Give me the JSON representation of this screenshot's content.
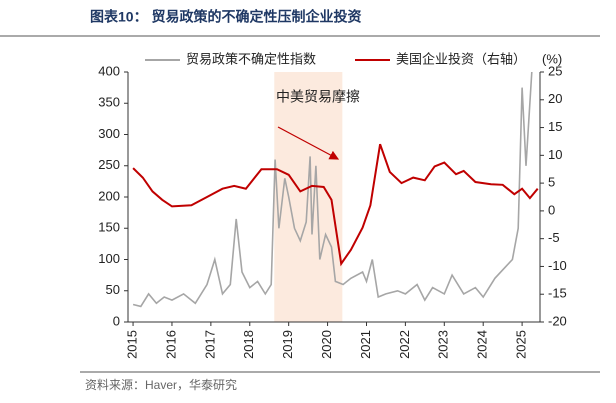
{
  "chart_data": {
    "type": "line",
    "title": "图表10： 贸易政策的不确定性压制企业投资",
    "source": "资料来源：Haver，华泰研究",
    "annotation": "中美贸易摩擦",
    "y2label": "(%)",
    "shaded_range": [
      2018.63,
      2020.38
    ],
    "xlim": [
      2014.87,
      2025.46
    ],
    "xticks": [
      2015,
      2016,
      2017,
      2018,
      2019,
      2020,
      2021,
      2022,
      2023,
      2024,
      2025
    ],
    "ylim": [
      0,
      400
    ],
    "yticks": [
      0,
      50,
      100,
      150,
      200,
      250,
      300,
      350,
      400
    ],
    "y2lim": [
      -20,
      25
    ],
    "y2ticks": [
      -20,
      -15,
      -10,
      -5,
      0,
      5,
      10,
      15,
      20,
      25
    ],
    "legend": "top",
    "series": [
      {
        "name": "贸易政策不确定性指数",
        "color": "#a6a6a6",
        "axis": "y",
        "x": [
          2015.0,
          2015.2,
          2015.4,
          2015.6,
          2015.8,
          2016.0,
          2016.3,
          2016.6,
          2016.9,
          2017.1,
          2017.3,
          2017.5,
          2017.65,
          2017.8,
          2018.0,
          2018.2,
          2018.4,
          2018.55,
          2018.65,
          2018.75,
          2018.9,
          2019.0,
          2019.15,
          2019.3,
          2019.45,
          2019.55,
          2019.6,
          2019.7,
          2019.8,
          2019.95,
          2020.1,
          2020.2,
          2020.4,
          2020.6,
          2020.9,
          2021.0,
          2021.15,
          2021.3,
          2021.5,
          2021.8,
          2022.0,
          2022.3,
          2022.5,
          2022.7,
          2023.0,
          2023.2,
          2023.5,
          2023.8,
          2024.0,
          2024.3,
          2024.6,
          2024.75,
          2024.9,
          2025.0,
          2025.1,
          2025.25
        ],
        "values": [
          28,
          25,
          45,
          30,
          40,
          35,
          45,
          30,
          60,
          100,
          45,
          60,
          165,
          80,
          55,
          65,
          45,
          60,
          260,
          150,
          230,
          200,
          150,
          130,
          160,
          265,
          140,
          250,
          100,
          140,
          120,
          65,
          60,
          70,
          80,
          65,
          100,
          40,
          45,
          50,
          45,
          60,
          35,
          55,
          45,
          75,
          45,
          55,
          40,
          70,
          90,
          100,
          150,
          375,
          250,
          400
        ]
      },
      {
        "name": "美国企业投资（右轴）",
        "color": "#c00000",
        "axis": "y2",
        "x": [
          2015.0,
          2015.25,
          2015.5,
          2015.75,
          2016.0,
          2016.5,
          2016.9,
          2017.3,
          2017.6,
          2017.9,
          2018.3,
          2018.7,
          2019.0,
          2019.3,
          2019.6,
          2019.9,
          2020.1,
          2020.35,
          2020.6,
          2020.9,
          2021.1,
          2021.35,
          2021.6,
          2021.9,
          2022.2,
          2022.5,
          2022.75,
          2023.0,
          2023.3,
          2023.5,
          2023.8,
          2024.2,
          2024.5,
          2024.8,
          2025.0,
          2025.2,
          2025.4
        ],
        "values": [
          7.7,
          6,
          3.5,
          2,
          0.8,
          1,
          2.5,
          4,
          4.5,
          4,
          7.5,
          7.5,
          6.5,
          3.5,
          4.5,
          4.3,
          2,
          -9.5,
          -7,
          -3,
          1,
          12,
          7,
          5,
          6,
          5.5,
          8,
          8.7,
          6.6,
          7.2,
          5.2,
          4.8,
          4.7,
          3,
          4,
          2.3,
          4
        ]
      }
    ]
  }
}
